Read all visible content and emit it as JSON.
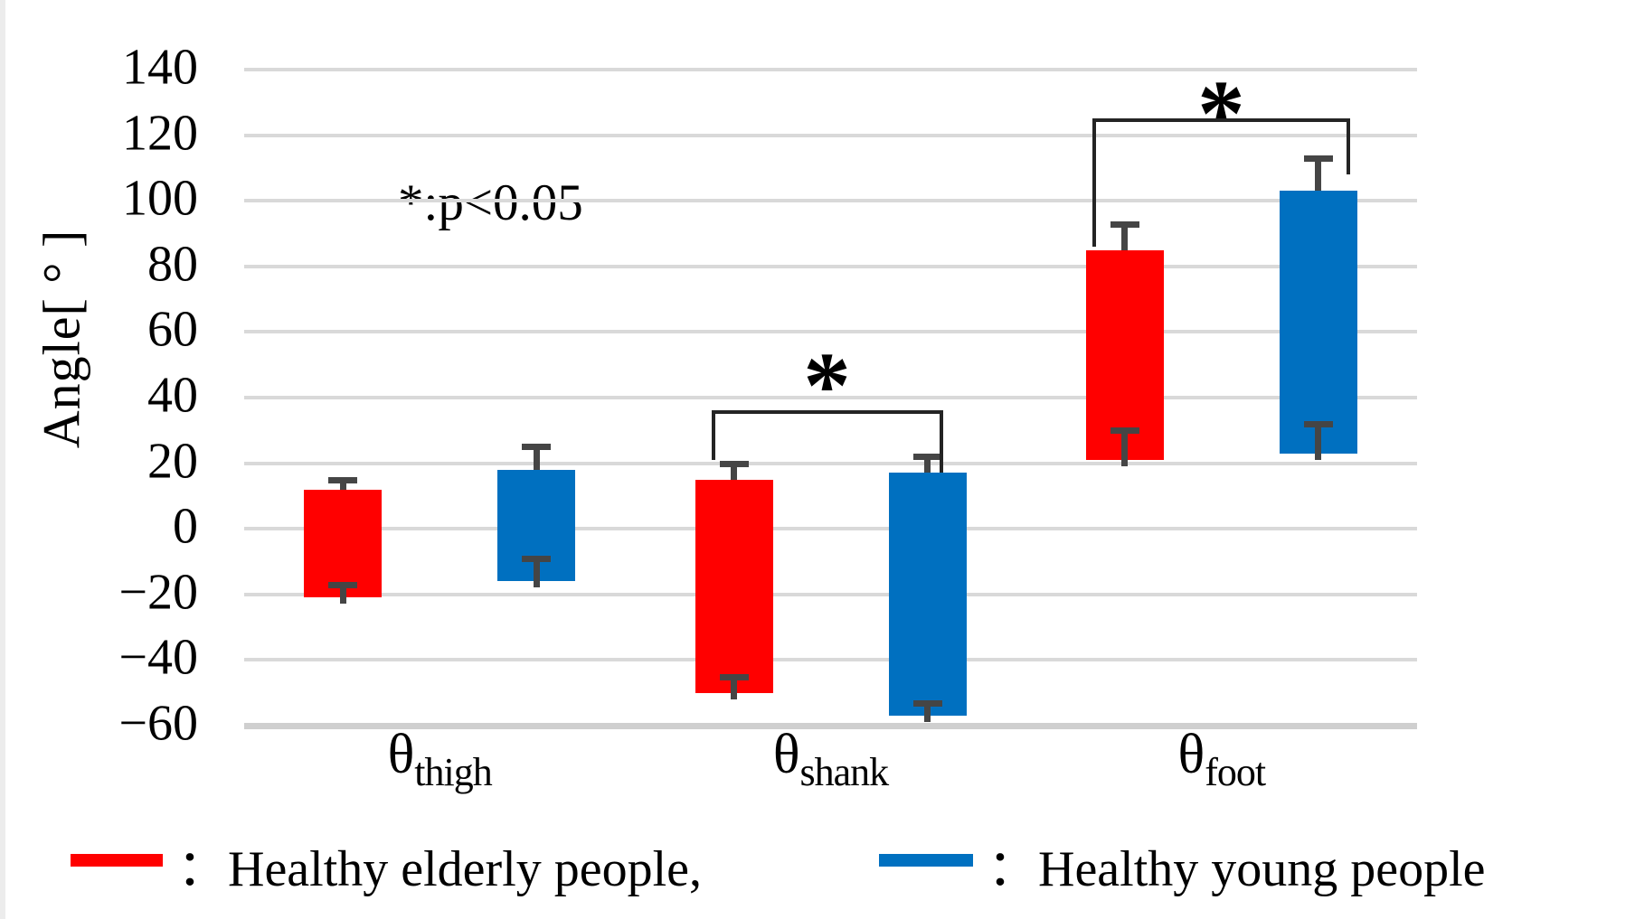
{
  "figure": {
    "y_axis_title": "Angle[ ° ]",
    "annotation": "*:p<0.05"
  },
  "legend": [
    {
      "key": "elderly",
      "color": "#ff0000",
      "label": "：Healthy elderly people,"
    },
    {
      "key": "young",
      "color": "#0070c0",
      "label": "：Healthy young people"
    }
  ],
  "chart_data": {
    "type": "bar",
    "bar_style": "floating-range-with-error-bars",
    "title": "",
    "xlabel": "",
    "ylabel": "Angle[°]",
    "ylim": [
      -60,
      140
    ],
    "grid": true,
    "legend_position": "bottom",
    "yticks": [
      {
        "v": 140,
        "label": "140"
      },
      {
        "v": 120,
        "label": "120"
      },
      {
        "v": 100,
        "label": "100"
      },
      {
        "v": 80,
        "label": "80"
      },
      {
        "v": 60,
        "label": "60"
      },
      {
        "v": 40,
        "label": "40"
      },
      {
        "v": 20,
        "label": "20"
      },
      {
        "v": 0,
        "label": "0"
      },
      {
        "v": -20,
        "label": "−20"
      },
      {
        "v": -40,
        "label": "−40"
      },
      {
        "v": -60,
        "label": "−60"
      }
    ],
    "categories": [
      {
        "key": "thigh",
        "symbol": "θ",
        "subscript": "thigh"
      },
      {
        "key": "shank",
        "symbol": "θ",
        "subscript": "shank"
      },
      {
        "key": "foot",
        "symbol": "θ",
        "subscript": "foot"
      }
    ],
    "series": [
      {
        "key": "elderly",
        "name": "Healthy elderly people",
        "color": "#ff0000",
        "bars": [
          {
            "top": 12,
            "bottom": -21,
            "err_top": 15,
            "err_bottom": -17
          },
          {
            "top": 15,
            "bottom": -50,
            "err_top": 20,
            "err_bottom": -45
          },
          {
            "top": 85,
            "bottom": 21,
            "err_top": 93,
            "err_bottom": 30
          }
        ]
      },
      {
        "key": "young",
        "name": "Healthy young people",
        "color": "#0070c0",
        "bars": [
          {
            "top": 18,
            "bottom": -16,
            "err_top": 25,
            "err_bottom": -9
          },
          {
            "top": 17,
            "bottom": -57,
            "err_top": 22,
            "err_bottom": -53
          },
          {
            "top": 103,
            "bottom": 23,
            "err_top": 113,
            "err_bottom": 32
          }
        ]
      }
    ],
    "significance": [
      {
        "label": "*",
        "category_index": 1,
        "y": 35.5,
        "left_end": 21,
        "right_end": 17,
        "left_dx": -25,
        "right_dx": 17,
        "label_dy": -52
      },
      {
        "label": "*",
        "category_index": 2,
        "y": 124.5,
        "left_end": 86,
        "right_end": 108,
        "left_dx": -36,
        "right_dx": 35,
        "label_dy": -30
      }
    ]
  }
}
